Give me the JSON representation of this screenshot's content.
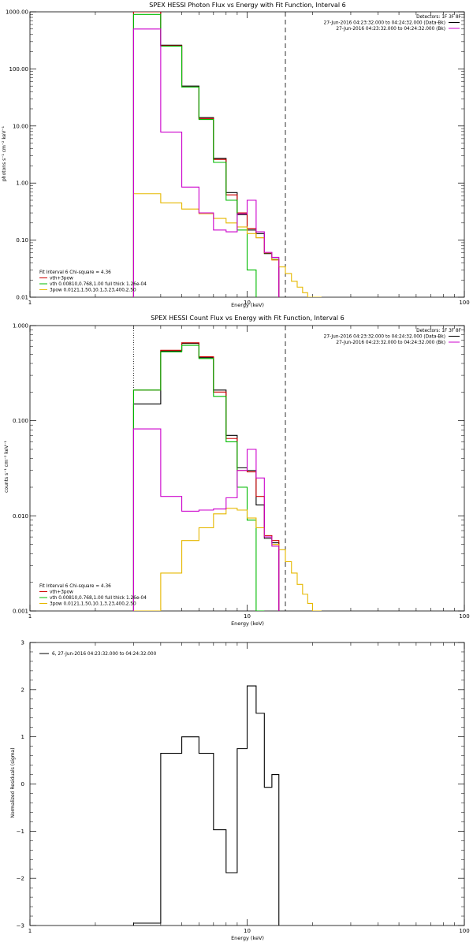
{
  "chart_data": [
    {
      "type": "line",
      "step": true,
      "title": "SPEX HESSI Photon Flux vs Energy with Fit Function, Interval 6",
      "xlabel": "Energy (keV)",
      "ylabel": "photons s⁻¹ cm⁻² keV⁻¹",
      "xscale": "log",
      "yscale": "log",
      "xlim": [
        1,
        100
      ],
      "ylim": [
        0.01,
        1000
      ],
      "xticks": [
        "1",
        "10",
        "100"
      ],
      "yticks": [
        "0.01",
        "0.10",
        "1.00",
        "10.00",
        "100.00",
        "1000.00"
      ],
      "legend_top_right": [
        {
          "text": "Detectors: 1F 3F 8F",
          "color": null
        },
        {
          "text": "27-Jun-2016 04:23:32.000 to 04:24:32.000 (Data-Bk)",
          "color": "#000000"
        },
        {
          "text": "27-Jun-2016 04:23:32.000 to 04:24:32.000 (Bk)",
          "color": "#cc00cc"
        }
      ],
      "legend_bottom_left": [
        {
          "text": "Fit Interval 6   Chi-square = 4.36",
          "color": null
        },
        {
          "text": "vth+3pow",
          "color": "#cc0000"
        },
        {
          "text": "vth 0.00810,0.768,1.00  full thick 1.26e-04",
          "color": "#00bb00"
        },
        {
          "text": "3pow 0.0121,1.50,10.1,3.23,400,2.50",
          "color": "#e6b800"
        }
      ],
      "edges": [
        3,
        4,
        5,
        6,
        7,
        8,
        9,
        10,
        11,
        12,
        13,
        14,
        15,
        16,
        17,
        18,
        19,
        20,
        22,
        24
      ],
      "series": [
        {
          "name": "(Data-Bk)",
          "color": "#000000",
          "from": 3,
          "values": [
            1000,
            260,
            50,
            14,
            2.7,
            0.68,
            0.28,
            0.15,
            0.13,
            0.058,
            0.046
          ]
        },
        {
          "name": "vth+3pow",
          "color": "#cc0000",
          "from": 3,
          "values": [
            1000,
            255,
            48,
            13.5,
            2.6,
            0.62,
            0.3,
            0.16,
            0.11,
            0.06,
            0.045
          ]
        },
        {
          "name": "vth",
          "color": "#00bb00",
          "from": 3,
          "values": [
            900,
            250,
            48,
            13,
            2.3,
            0.5,
            0.15,
            0.03
          ]
        },
        {
          "name": "3pow",
          "color": "#e6b800",
          "from": 3,
          "values": [
            0.65,
            0.45,
            0.35,
            0.29,
            0.24,
            0.2,
            0.17,
            0.13,
            0.11,
            0.06,
            0.045,
            0.034,
            0.026,
            0.019,
            0.015,
            0.012,
            0.01,
            0.01
          ]
        },
        {
          "name": "(Bk)",
          "color": "#cc00cc",
          "from": 3,
          "values": [
            500,
            7.8,
            0.85,
            0.3,
            0.15,
            0.14,
            0.29,
            0.5,
            0.14,
            0.061,
            0.05
          ]
        }
      ],
      "vlines": [
        {
          "x": 3,
          "style": "dotted"
        },
        {
          "x": 15,
          "style": "dashed"
        }
      ]
    },
    {
      "type": "line",
      "step": true,
      "title": "SPEX HESSI Count Flux vs Energy with Fit Function, Interval 6",
      "xlabel": "Energy (keV)",
      "ylabel": "counts s⁻¹ cm⁻² keV⁻¹",
      "xscale": "log",
      "yscale": "log",
      "xlim": [
        1,
        100
      ],
      "ylim": [
        0.001,
        1
      ],
      "xticks": [
        "1",
        "10",
        "100"
      ],
      "yticks": [
        "0.001",
        "0.010",
        "0.100",
        "1.000"
      ],
      "legend_top_right": [
        {
          "text": "Detectors: 1F 3F 8F",
          "color": null
        },
        {
          "text": "27-Jun-2016 04:23:32.000 to 04:24:32.000 (Data-Bk)",
          "color": "#000000"
        },
        {
          "text": "27-Jun-2016 04:23:32.000 to 04:24:32.000 (Bk)",
          "color": "#cc00cc"
        }
      ],
      "legend_bottom_left": [
        {
          "text": "Fit Interval 6   Chi-square = 4.36",
          "color": null
        },
        {
          "text": "vth+3pow",
          "color": "#cc0000"
        },
        {
          "text": "vth 0.00810,0.768,1.00  full thick 1.26e-04",
          "color": "#00bb00"
        },
        {
          "text": "3pow 0.0121,1.50,10.1,3.23,400,2.50",
          "color": "#e6b800"
        }
      ],
      "edges": [
        3,
        4,
        5,
        6,
        7,
        8,
        9,
        10,
        11,
        12,
        13,
        14,
        15,
        16,
        17,
        18,
        19,
        20,
        22,
        24
      ],
      "series": [
        {
          "name": "(Data-Bk)",
          "color": "#000000",
          "from": 3,
          "values": [
            0.15,
            0.54,
            0.65,
            0.46,
            0.21,
            0.07,
            0.032,
            0.03,
            0.013,
            0.0058,
            0.0052
          ]
        },
        {
          "name": "vth+3pow",
          "color": "#cc0000",
          "from": 3,
          "values": [
            0.21,
            0.55,
            0.66,
            0.47,
            0.2,
            0.065,
            0.03,
            0.029,
            0.016,
            0.0062,
            0.0055
          ]
        },
        {
          "name": "vth",
          "color": "#00bb00",
          "from": 3,
          "values": [
            0.21,
            0.53,
            0.62,
            0.45,
            0.18,
            0.06,
            0.02,
            0.009,
            0.001
          ]
        },
        {
          "name": "3pow",
          "color": "#e6b800",
          "from": 3,
          "values": [
            0.001,
            0.0025,
            0.0055,
            0.0075,
            0.0105,
            0.012,
            0.0115,
            0.0095,
            0.0075,
            0.006,
            0.005,
            0.0044,
            0.0033,
            0.0025,
            0.0019,
            0.0015,
            0.0012,
            0.001
          ]
        },
        {
          "name": "(Bk)",
          "color": "#cc00cc",
          "from": 3,
          "values": [
            0.082,
            0.016,
            0.0112,
            0.0115,
            0.0118,
            0.0155,
            0.03,
            0.05,
            0.025,
            0.006,
            0.0048
          ]
        }
      ],
      "vlines": [
        {
          "x": 3,
          "style": "dotted"
        },
        {
          "x": 15,
          "style": "dashed"
        }
      ]
    },
    {
      "type": "line",
      "step": true,
      "title": "",
      "xlabel": "Energy (keV)",
      "ylabel": "Normalized Residuals (sigma)",
      "xscale": "log",
      "yscale": "linear",
      "xlim": [
        1,
        100
      ],
      "ylim": [
        -3,
        3
      ],
      "xticks": [
        "1",
        "10",
        "100"
      ],
      "yticks": [
        "−3",
        "−2",
        "−1",
        "0",
        "1",
        "2",
        "3"
      ],
      "legend_top_left": [
        {
          "text": "6, 27-Jun-2016 04:23:32.000 to 04:24:32.000",
          "color": "#000000"
        }
      ],
      "edges": [
        3,
        4,
        5,
        6,
        7,
        8,
        9,
        10,
        11,
        12,
        13,
        14,
        15
      ],
      "series": [
        {
          "name": "6",
          "color": "#000000",
          "from": 3,
          "values": [
            -2.95,
            0.65,
            1.0,
            0.65,
            -0.97,
            -1.88,
            0.75,
            2.08,
            1.5,
            -0.07,
            0.2
          ]
        }
      ],
      "vlines": []
    }
  ]
}
